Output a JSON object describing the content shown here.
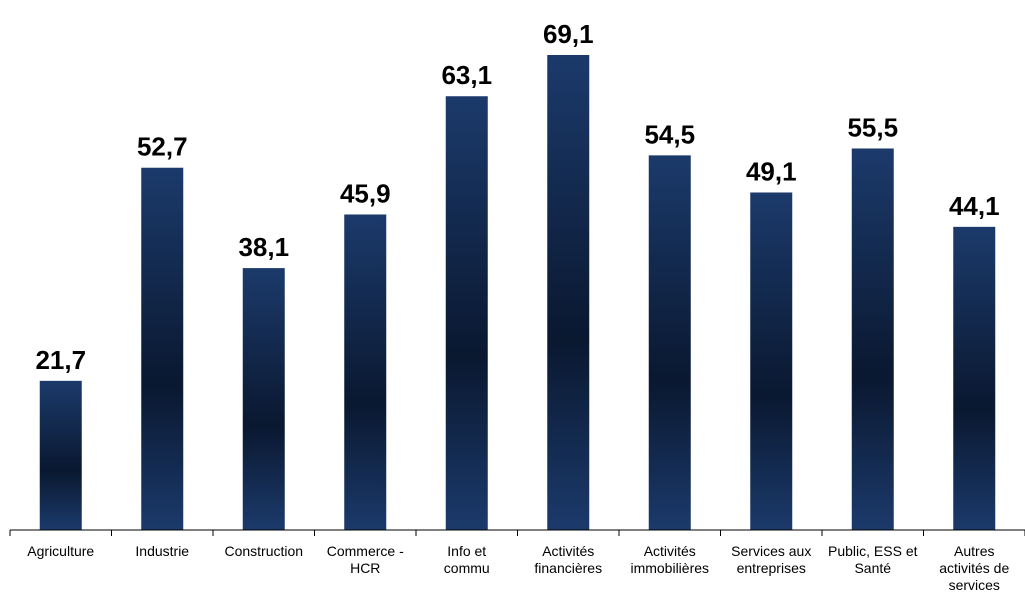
{
  "chart_data": {
    "type": "bar",
    "categories": [
      [
        "Agriculture"
      ],
      [
        "Industrie"
      ],
      [
        "Construction"
      ],
      [
        "Commerce -",
        "HCR"
      ],
      [
        "Info et",
        "commu"
      ],
      [
        "Activités",
        "financières"
      ],
      [
        "Activités",
        "immobilières"
      ],
      [
        "Services aux",
        "entreprises"
      ],
      [
        "Public, ESS et",
        "Santé"
      ],
      [
        "Autres",
        "activités de",
        "services"
      ]
    ],
    "values": [
      21.7,
      52.7,
      38.1,
      45.9,
      63.1,
      69.1,
      54.5,
      49.1,
      55.5,
      44.1
    ],
    "value_labels": [
      "21,7",
      "52,7",
      "38,1",
      "45,9",
      "63,1",
      "69,1",
      "54,5",
      "49,1",
      "55,5",
      "44,1"
    ],
    "title": "",
    "xlabel": "",
    "ylabel": "",
    "ylim": [
      0,
      69.1
    ],
    "grid": false,
    "legend": "none",
    "colors": {
      "bar_edge": "#1b3a6b",
      "bar_center": "#0a1830",
      "axis": "#000000",
      "text": "#000000"
    }
  }
}
